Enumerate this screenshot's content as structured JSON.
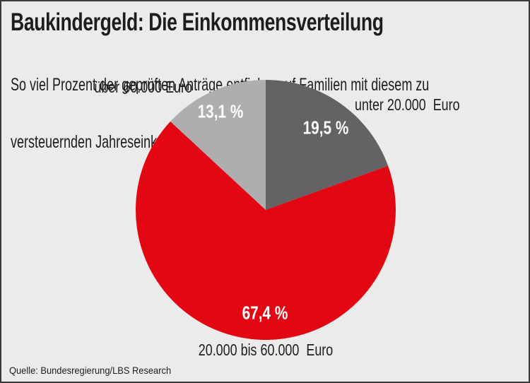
{
  "header": {
    "title": "Baukindergeld: Die Einkommensverteilung",
    "subtitle_line1": "So viel Prozent der geprüften Anträge entfielen auf Familien mit diesem zu",
    "subtitle_line2": "versteuernden Jahreseinkommen"
  },
  "source": "Quelle: Bundesregierung/LBS Research",
  "colors": {
    "background": "#ebebeb",
    "frame": "#3a3a3a",
    "text": "#1d1d1b",
    "value_label_text": "#ffffff"
  },
  "chart_data": {
    "type": "pie",
    "title": "Baukindergeld: Die Einkommensverteilung",
    "subtitle": "So viel Prozent der geprüften Anträge entfielen auf Familien mit diesem zu versteuernden Jahreseinkommen",
    "units": "%",
    "start_angle_deg": 0,
    "direction": "clockwise",
    "legend": "none",
    "slices": [
      {
        "label": "unter 20.000  Euro",
        "value": 19.5,
        "value_label": "19,5 %",
        "color": "#656265"
      },
      {
        "label": "20.000 bis 60.000  Euro",
        "value": 67.4,
        "value_label": "67,4 %",
        "color": "#e30613"
      },
      {
        "label": "über 60.000 Euro",
        "value": 13.1,
        "value_label": "13,1 %",
        "color": "#b0adb0"
      }
    ]
  }
}
